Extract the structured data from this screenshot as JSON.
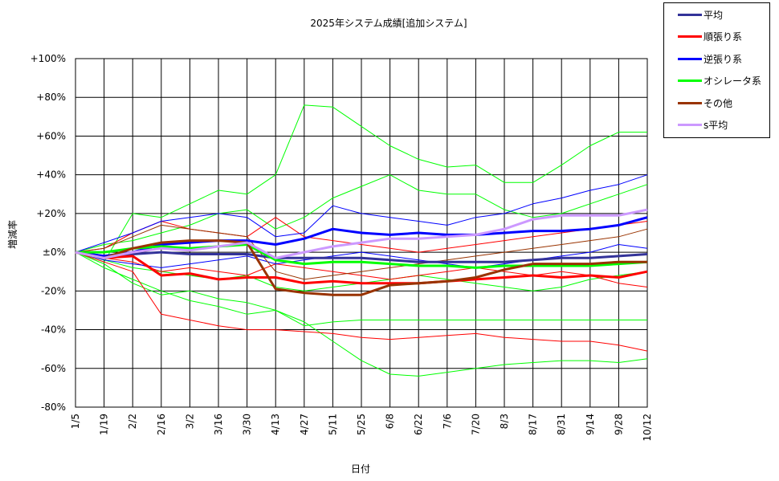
{
  "chart_data": {
    "type": "line",
    "title": "2025年システム成績[追加システム]",
    "xlabel": "日付",
    "ylabel": "増減率",
    "ylim": [
      -80,
      100
    ],
    "yticks": [
      100,
      80,
      60,
      40,
      20,
      0,
      -20,
      -40,
      -60,
      -80
    ],
    "ytick_labels": [
      "+100%",
      "+80%",
      "+60%",
      "+40%",
      "+20%",
      "±0%",
      "-20%",
      "-40%",
      "-60%",
      "-80%"
    ],
    "x_tick_labels": [
      "1/5",
      "1/19",
      "2/2",
      "2/16",
      "3/2",
      "3/16",
      "3/30",
      "4/13",
      "4/27",
      "5/11",
      "5/25",
      "6/8",
      "6/22",
      "7/6",
      "7/20",
      "8/3",
      "8/17",
      "8/31",
      "9/14",
      "9/28",
      "10/12"
    ],
    "x": [
      "1/5",
      "1/19",
      "2/2",
      "2/16",
      "3/2",
      "3/16",
      "3/30",
      "4/13",
      "4/27",
      "5/11",
      "5/25",
      "6/8",
      "6/22",
      "7/6",
      "7/20",
      "8/3",
      "8/17",
      "8/31",
      "9/14",
      "9/28",
      "10/12"
    ],
    "grid": true,
    "legend_position": "top-right",
    "series": [
      {
        "name": "平均",
        "color": "#333399",
        "width": 3,
        "values": [
          0,
          -2,
          -1,
          0,
          -1,
          -1,
          -1,
          -3,
          -3,
          -3,
          -3,
          -4,
          -5,
          -5,
          -5,
          -5,
          -4,
          -3,
          -3,
          -2,
          -1
        ]
      },
      {
        "name": "順張り系",
        "color": "#ff0000",
        "width": 3,
        "values": [
          0,
          -3,
          -2,
          -12,
          -11,
          -14,
          -13,
          -13,
          -16,
          -15,
          -16,
          -16,
          -16,
          -15,
          -14,
          -13,
          -12,
          -13,
          -12,
          -13,
          -10
        ]
      },
      {
        "name": "逆張り系",
        "color": "#0000ff",
        "width": 3,
        "values": [
          0,
          -2,
          0,
          4,
          5,
          6,
          6,
          4,
          7,
          12,
          10,
          9,
          10,
          9,
          9,
          10,
          11,
          11,
          12,
          14,
          18
        ]
      },
      {
        "name": "オシレータ系",
        "color": "#00ff00",
        "width": 3,
        "values": [
          0,
          0,
          2,
          3,
          2,
          3,
          4,
          -4,
          -6,
          -5,
          -5,
          -6,
          -7,
          -7,
          -8,
          -7,
          -7,
          -7,
          -7,
          -6,
          -5
        ]
      },
      {
        "name": "その他",
        "color": "#993300",
        "width": 3,
        "values": [
          0,
          -3,
          2,
          5,
          6,
          6,
          5,
          -19,
          -21,
          -22,
          -22,
          -17,
          -16,
          -15,
          -13,
          -9,
          -6,
          -6,
          -6,
          -5,
          -5
        ]
      },
      {
        "name": "s平均",
        "color": "#cc99ff",
        "width": 3,
        "values": [
          0,
          -3,
          0,
          2,
          1,
          3,
          5,
          -3,
          0,
          3,
          5,
          7,
          7,
          8,
          9,
          12,
          17,
          19,
          19,
          19,
          22
        ]
      },
      {
        "color": "#00ff00",
        "width": 1,
        "values": [
          0,
          -5,
          20,
          18,
          25,
          32,
          30,
          40,
          76,
          75,
          65,
          55,
          48,
          44,
          45,
          36,
          36,
          45,
          55,
          62,
          62
        ]
      },
      {
        "color": "#00ff00",
        "width": 1,
        "values": [
          0,
          4,
          6,
          10,
          14,
          20,
          22,
          12,
          18,
          28,
          34,
          40,
          32,
          30,
          30,
          22,
          18,
          20,
          25,
          30,
          35
        ]
      },
      {
        "color": "#00ff00",
        "width": 1,
        "values": [
          0,
          -8,
          -14,
          -20,
          -25,
          -28,
          -32,
          -30,
          -38,
          -36,
          -35,
          -35,
          -35,
          -35,
          -35,
          -35,
          -35,
          -35,
          -35,
          -35,
          -35
        ]
      },
      {
        "color": "#00ff00",
        "width": 1,
        "values": [
          0,
          -6,
          -16,
          -22,
          -20,
          -24,
          -26,
          -30,
          -36,
          -46,
          -56,
          -63,
          -64,
          -62,
          -60,
          -58,
          -57,
          -56,
          -56,
          -57,
          -55
        ]
      },
      {
        "color": "#00ff00",
        "width": 1,
        "values": [
          0,
          -4,
          -8,
          -10,
          -12,
          -14,
          -12,
          -18,
          -20,
          -18,
          -16,
          -14,
          -12,
          -14,
          -16,
          -18,
          -20,
          -18,
          -14,
          -12,
          -10
        ]
      },
      {
        "color": "#ff0000",
        "width": 1,
        "values": [
          0,
          -5,
          -10,
          -32,
          -35,
          -38,
          -40,
          -40,
          -41,
          -42,
          -44,
          -45,
          -44,
          -43,
          -42,
          -44,
          -45,
          -46,
          -46,
          -48,
          -51
        ]
      },
      {
        "color": "#ff0000",
        "width": 1,
        "values": [
          0,
          2,
          10,
          16,
          12,
          10,
          8,
          18,
          8,
          6,
          4,
          2,
          0,
          2,
          4,
          6,
          8,
          10,
          12,
          14,
          16
        ]
      },
      {
        "color": "#ff0000",
        "width": 1,
        "values": [
          0,
          -3,
          -5,
          -10,
          -8,
          -10,
          -12,
          -6,
          -8,
          -10,
          -12,
          -14,
          -12,
          -10,
          -8,
          -10,
          -12,
          -10,
          -12,
          -16,
          -18
        ]
      },
      {
        "color": "#0000ff",
        "width": 1,
        "values": [
          0,
          5,
          10,
          16,
          18,
          20,
          18,
          8,
          10,
          24,
          20,
          18,
          16,
          14,
          18,
          20,
          25,
          28,
          32,
          35,
          40
        ]
      },
      {
        "color": "#0000ff",
        "width": 1,
        "values": [
          0,
          -4,
          -6,
          -8,
          -6,
          -4,
          -2,
          -6,
          -4,
          -2,
          0,
          -2,
          -4,
          -6,
          -8,
          -6,
          -4,
          -2,
          0,
          4,
          2
        ]
      },
      {
        "color": "#993300",
        "width": 1,
        "values": [
          0,
          2,
          8,
          14,
          12,
          10,
          8,
          -10,
          -14,
          -12,
          -10,
          -8,
          -6,
          -4,
          -2,
          0,
          2,
          4,
          6,
          8,
          12
        ]
      }
    ]
  }
}
